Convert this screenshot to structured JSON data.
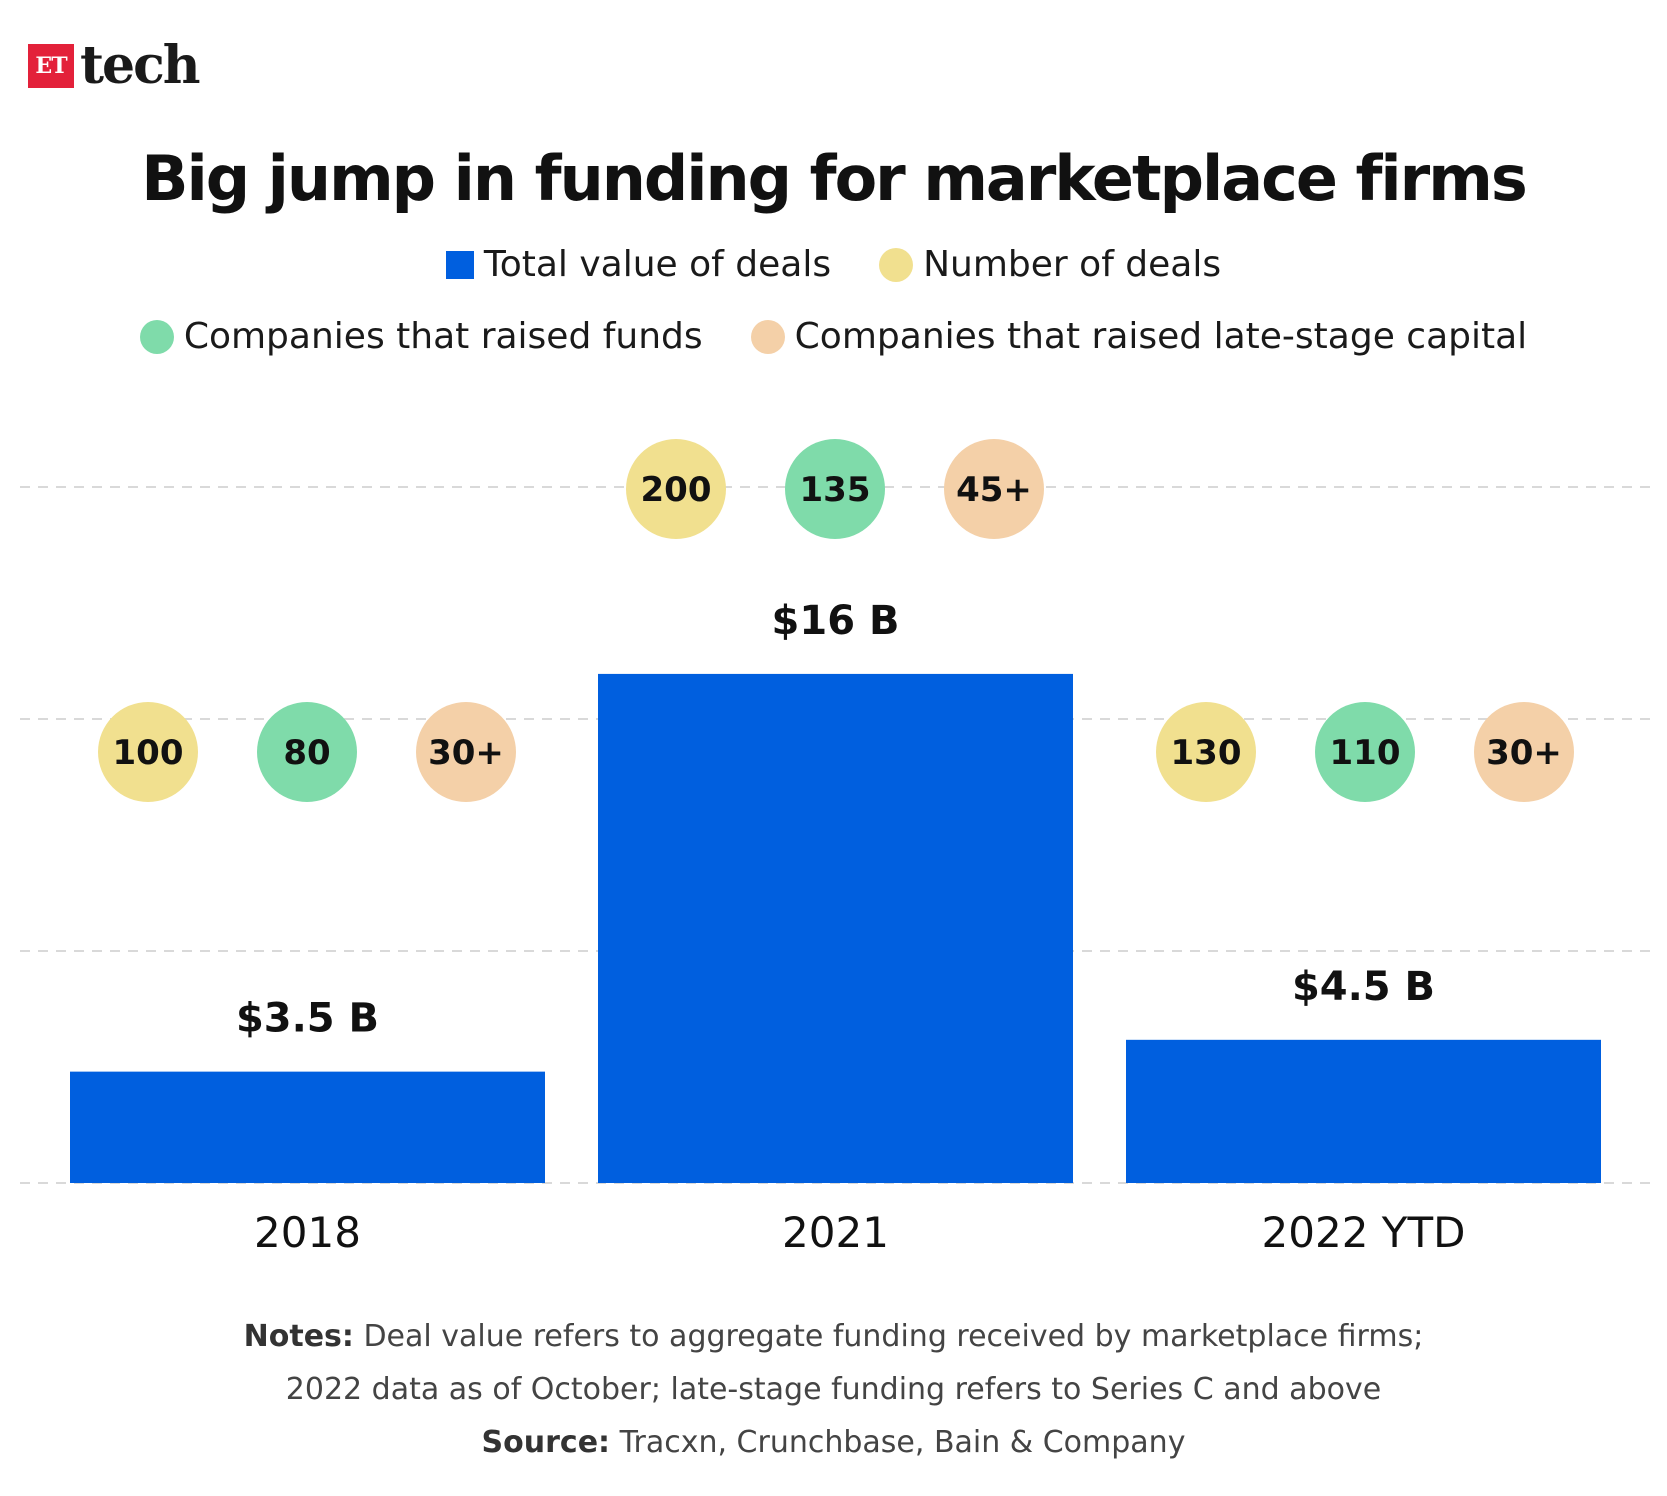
{
  "brand": {
    "badge": "ET",
    "name": "tech"
  },
  "colors": {
    "bar": "#005fdf",
    "number_of_deals": "#f1e08f",
    "companies_raised": "#7fdbaa",
    "late_stage": "#f4d0a8",
    "gridline": "#d9d9d9"
  },
  "legend": [
    {
      "label": "Total value of deals",
      "shape": "square",
      "color_key": "bar"
    },
    {
      "label": "Number of deals",
      "shape": "circle",
      "color_key": "number_of_deals"
    },
    {
      "label": "Companies that raised funds",
      "shape": "circle",
      "color_key": "companies_raised"
    },
    {
      "label": "Companies that raised late-stage capital",
      "shape": "circle",
      "color_key": "late_stage"
    }
  ],
  "chart_data": {
    "type": "bar",
    "title": "Big jump in funding for marketplace firms",
    "categories": [
      "2018",
      "2021",
      "2022 YTD"
    ],
    "series": [
      {
        "name": "Total value of deals",
        "values": [
          3.5,
          16,
          4.5
        ],
        "labels": [
          "$3.5 B",
          "$16 B",
          "$4.5 B"
        ]
      },
      {
        "name": "Number of deals",
        "values": [
          "100",
          "200",
          "130"
        ]
      },
      {
        "name": "Companies that raised funds",
        "values": [
          "80",
          "135",
          "110"
        ]
      },
      {
        "name": "Companies that raised late-stage capital",
        "values": [
          "30+",
          "45+",
          "30+"
        ]
      }
    ],
    "ylim": [
      0,
      22
    ],
    "grid": true,
    "legend_position": "top-center"
  },
  "notes": {
    "notes_label": "Notes:",
    "notes_line1": " Deal value refers to aggregate funding received by marketplace firms;",
    "notes_line2": "2022 data as of October; late-stage funding refers to Series C and above",
    "source_label": "Source:",
    "source_text": " Tracxn, Crunchbase, Bain & Company"
  }
}
